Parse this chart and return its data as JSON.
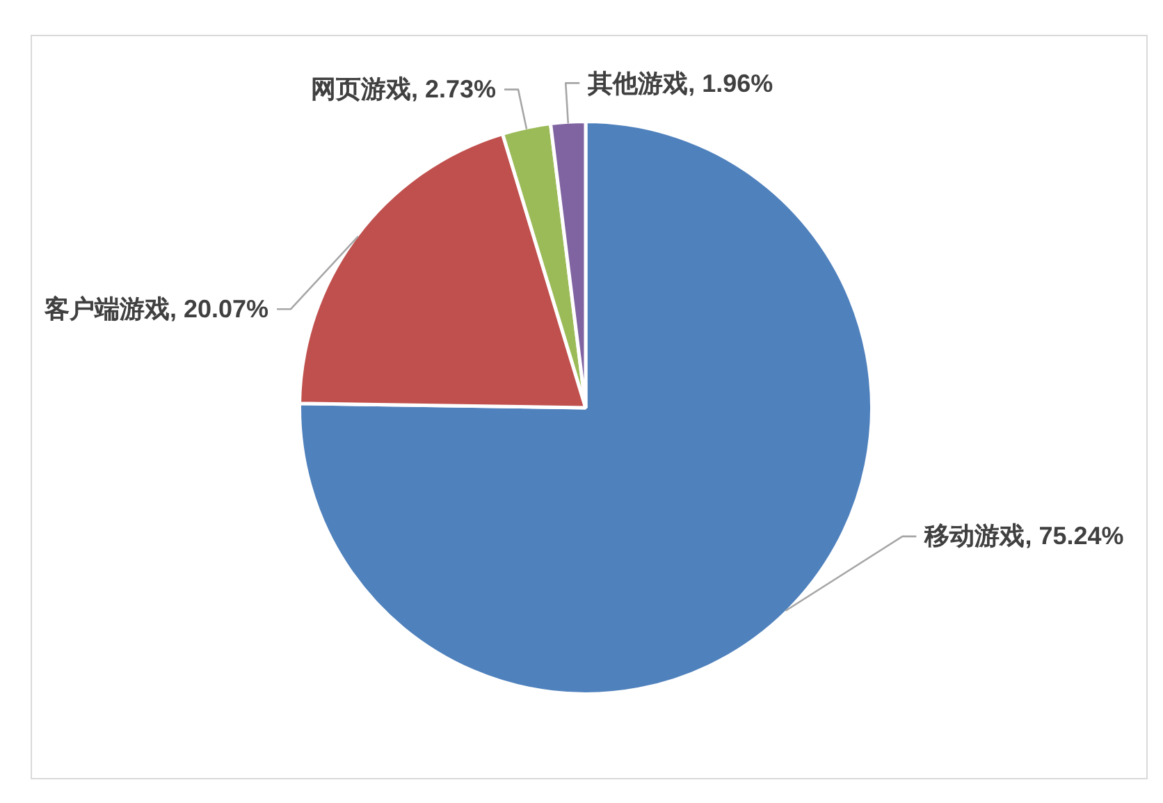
{
  "chart_data": {
    "type": "pie",
    "categories": [
      "移动游戏",
      "客户端游戏",
      "网页游戏",
      "其他游戏"
    ],
    "values": [
      75.24,
      20.07,
      2.73,
      1.96
    ],
    "colors": [
      "#4f81bd",
      "#c0504d",
      "#9bbb59",
      "#8064a2"
    ],
    "value_labels": [
      "75.24%",
      "20.07%",
      "2.73%",
      "1.96%"
    ],
    "legend": false
  }
}
